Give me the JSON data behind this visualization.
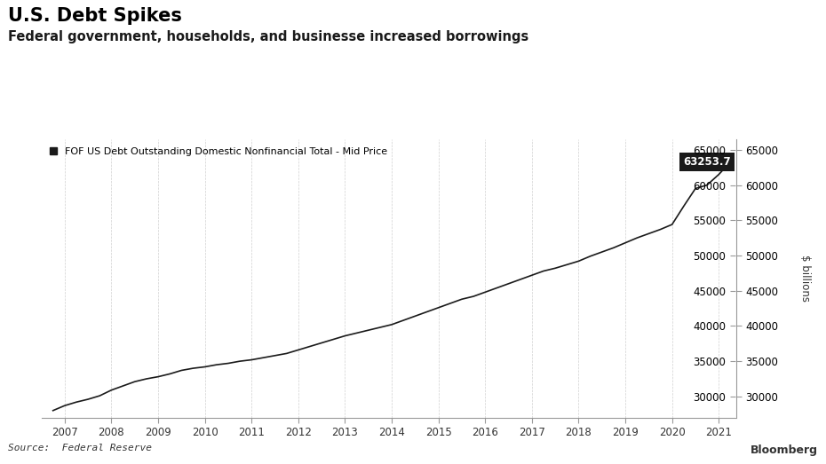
{
  "title": "U.S. Debt Spikes",
  "subtitle": "Federal government, households, and businesse increased borrowings",
  "legend_label": "FOF US Debt Outstanding Domestic Nonfinancial Total - Mid Price",
  "source": "Source:  Federal Reserve",
  "ylabel": "$ billions",
  "annotation_value": "63253.7",
  "background_color": "#ffffff",
  "line_color": "#1a1a1a",
  "annotation_bg": "#1a1a1a",
  "annotation_text_color": "#ffffff",
  "grid_color": "#d0d0d0",
  "x_years": [
    2006.75,
    2007.0,
    2007.25,
    2007.5,
    2007.75,
    2008.0,
    2008.25,
    2008.5,
    2008.75,
    2009.0,
    2009.25,
    2009.5,
    2009.75,
    2010.0,
    2010.25,
    2010.5,
    2010.75,
    2011.0,
    2011.25,
    2011.5,
    2011.75,
    2012.0,
    2012.25,
    2012.5,
    2012.75,
    2013.0,
    2013.25,
    2013.5,
    2013.75,
    2014.0,
    2014.25,
    2014.5,
    2014.75,
    2015.0,
    2015.25,
    2015.5,
    2015.75,
    2016.0,
    2016.25,
    2016.5,
    2016.75,
    2017.0,
    2017.25,
    2017.5,
    2017.75,
    2018.0,
    2018.25,
    2018.5,
    2018.75,
    2019.0,
    2019.25,
    2019.5,
    2019.75,
    2020.0,
    2020.25,
    2020.5,
    2020.75,
    2021.0,
    2021.25
  ],
  "y_values": [
    28000,
    28700,
    29200,
    29600,
    30100,
    30900,
    31500,
    32100,
    32500,
    32800,
    33200,
    33700,
    34000,
    34200,
    34500,
    34700,
    35000,
    35200,
    35500,
    35800,
    36100,
    36600,
    37100,
    37600,
    38100,
    38600,
    39000,
    39400,
    39800,
    40200,
    40800,
    41400,
    42000,
    42600,
    43200,
    43800,
    44200,
    44800,
    45400,
    46000,
    46600,
    47200,
    47800,
    48200,
    48700,
    49200,
    49900,
    50500,
    51100,
    51800,
    52500,
    53100,
    53700,
    54400,
    57000,
    59500,
    60000,
    61500,
    63253.7
  ],
  "ylim_min": 27000,
  "ylim_max": 66500,
  "yticks": [
    30000,
    35000,
    40000,
    45000,
    50000,
    55000,
    60000,
    65000
  ],
  "xticks": [
    2007,
    2008,
    2009,
    2010,
    2011,
    2012,
    2013,
    2014,
    2015,
    2016,
    2017,
    2018,
    2019,
    2020,
    2021
  ],
  "xlim_min": 2006.5,
  "xlim_max": 2021.35
}
